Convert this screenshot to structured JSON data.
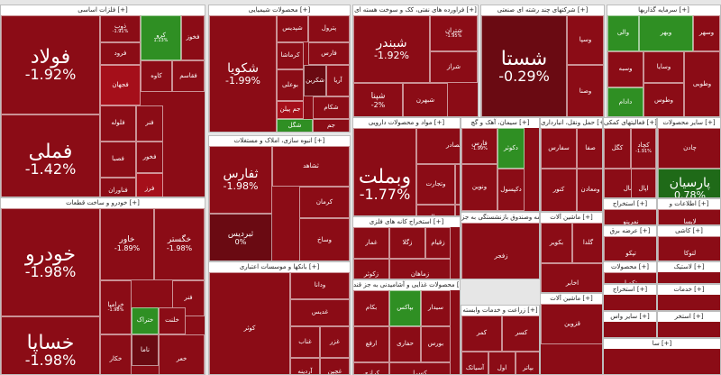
{
  "colors": {
    "dark_red": "#6a0a12",
    "red": "#8b0c16",
    "mid_red": "#a50f1a",
    "bright_red": "#c8141f",
    "dark_green": "#1f6a18",
    "green": "#2f8f23",
    "bright_green": "#3fae2d"
  },
  "sectors": [
    {
      "name": "sector-basic-metals",
      "title": "فلزات اساسی [+]"
    },
    {
      "name": "sector-chemicals",
      "title": "محصولات شیمیایی [+]"
    },
    {
      "name": "sector-petroleum",
      "title": "فراورده های نفتی، کک و سوخت هسته ای [+]"
    },
    {
      "name": "sector-multi-industry",
      "title": "شرکتهای چند رشته ای صنعتی [+]"
    },
    {
      "name": "sector-investment",
      "title": "سرمایه گذاریها [+]"
    },
    {
      "name": "sector-automotive",
      "title": "خودرو و ساخت قطعات [+]"
    },
    {
      "name": "sector-construction",
      "title": "انبوه سازی، املاک و مستغلات [+]"
    },
    {
      "name": "sector-pharma",
      "title": "مواد و محصولات دارویی [+]"
    },
    {
      "name": "sector-cement",
      "title": "سیمان، آهک و گچ [+]"
    },
    {
      "name": "sector-transport",
      "title": "حمل ونقل، انبارداری [+]"
    },
    {
      "name": "sector-credit",
      "title": "فعالیتهای کمکی [+]"
    },
    {
      "name": "sector-other-products",
      "title": "سایر محصولات [+]"
    },
    {
      "name": "sector-banks",
      "title": "بانکها و موسسات اعتباری [+]"
    },
    {
      "name": "sector-mining",
      "title": "استخراج کانه های فلزی [+]"
    },
    {
      "name": "sector-insurance",
      "title": "بیمه وصندوق بازنشستگی به جز [+]"
    },
    {
      "name": "sector-food",
      "title": "محصولات غذایی و آشامیدنی به جز قند [+]"
    },
    {
      "name": "sector-agriculture",
      "title": "زراعت و خدمات وابسته [+]"
    },
    {
      "name": "sector-machinery",
      "title": "ماشین آلات [+]"
    },
    {
      "name": "sector-coal",
      "title": "استخراج [+]"
    },
    {
      "name": "sector-it",
      "title": "اطلاعات و [+]"
    },
    {
      "name": "sector-retail",
      "title": "عرضه برق [+]"
    },
    {
      "name": "sector-tile",
      "title": "کاشی [+]"
    },
    {
      "name": "sector-paper",
      "title": "محصولات [+]"
    },
    {
      "name": "sector-textile",
      "title": "ماشین آلات [+]"
    },
    {
      "name": "sector-rubber",
      "title": "لاستیک [+]"
    },
    {
      "name": "sector-misc-extraction",
      "title": "استخراج [+]"
    },
    {
      "name": "sector-services",
      "title": "خدمات [+]"
    },
    {
      "name": "sector-other-mining",
      "title": "سایر واس [+]"
    },
    {
      "name": "sector-misc1",
      "title": "استخر [+]"
    },
    {
      "name": "sector-misc2",
      "title": "سا [+]"
    }
  ],
  "tiles": [
    {
      "name": "tile-foolad",
      "label": "فولاد",
      "pct": "-1.92%",
      "color": "#8b0c16",
      "size": "xl"
    },
    {
      "name": "tile-fameli",
      "label": "فملی",
      "pct": "-1.42%",
      "color": "#8b0c16",
      "size": "xl"
    },
    {
      "name": "tile-zob",
      "label": "ذوب",
      "pct": "-1.91%",
      "color": "#8b0c16",
      "size": "s"
    },
    {
      "name": "tile-kaveh-green",
      "label": "کرو",
      "pct": "1.13%",
      "color": "#2f8f23",
      "size": "s"
    },
    {
      "name": "tile-fakhoz",
      "label": "فخوز",
      "pct": "",
      "color": "#8b0c16",
      "size": "s"
    },
    {
      "name": "tile-foroud",
      "label": "فرود",
      "pct": "",
      "color": "#8b0c16",
      "size": "s"
    },
    {
      "name": "tile-kaveh",
      "label": "کاوه",
      "pct": "",
      "color": "#8b0c16",
      "size": "s"
    },
    {
      "name": "tile-fjehan",
      "label": "فجهان",
      "pct": "",
      "color": "#a50f1a",
      "size": "s"
    },
    {
      "name": "tile-folooleh",
      "label": "فلوله",
      "pct": "",
      "color": "#8b0c16",
      "size": "s"
    },
    {
      "name": "tile-fesaba",
      "label": "فصبا",
      "pct": "",
      "color": "#8b0c16",
      "size": "s"
    },
    {
      "name": "tile-fanavaran",
      "label": "فناوران",
      "pct": "",
      "color": "#8b0c16",
      "size": "s"
    },
    {
      "name": "tile-fenar",
      "label": "فنر",
      "pct": "",
      "color": "#8b0c16",
      "size": "s"
    },
    {
      "name": "tile-fakhoz2",
      "label": "فخور",
      "pct": "",
      "color": "#8b0c16",
      "size": "s"
    },
    {
      "name": "tile-fegostar",
      "label": "فقاسم",
      "pct": "",
      "color": "#8b0c16",
      "size": "s"
    },
    {
      "name": "tile-fogostar",
      "label": "فرز",
      "pct": "",
      "color": "#a50f1a",
      "size": "s"
    },
    {
      "name": "tile-shekoya",
      "label": "شکویا",
      "pct": "-1.99%",
      "color": "#8b0c16",
      "size": "l"
    },
    {
      "name": "tile-shepdis",
      "label": "شپدیس",
      "pct": "",
      "color": "#8b0c16",
      "size": "s"
    },
    {
      "name": "tile-karmasha",
      "label": "کرماشا",
      "pct": "",
      "color": "#8b0c16",
      "size": "s"
    },
    {
      "name": "tile-boali",
      "label": "بوعلی",
      "pct": "",
      "color": "#8b0c16",
      "size": "s"
    },
    {
      "name": "tile-petrol",
      "label": "پترول",
      "pct": "",
      "color": "#8b0c16",
      "size": "s"
    },
    {
      "name": "tile-fars",
      "label": "فارس",
      "pct": "",
      "color": "#8b0c16",
      "size": "s"
    },
    {
      "name": "tile-jam",
      "label": "جم پیلن",
      "pct": "",
      "color": "#a50f1a",
      "size": "s"
    },
    {
      "name": "tile-shekarn",
      "label": "شکربن",
      "pct": "",
      "color": "#6a0a12",
      "size": "s"
    },
    {
      "name": "tile-arya",
      "label": "آریا",
      "pct": "",
      "color": "#8b0c16",
      "size": "s"
    },
    {
      "name": "tile-shegol",
      "label": "شگل",
      "pct": "",
      "color": "#2f8f23",
      "size": "s"
    },
    {
      "name": "tile-shekham",
      "label": "شکام",
      "pct": "",
      "color": "#8b0c16",
      "size": "s"
    },
    {
      "name": "tile-jam2",
      "label": "جم",
      "pct": "",
      "color": "#8b0c16",
      "size": "s"
    },
    {
      "name": "tile-shebandar",
      "label": "شبندر",
      "pct": "-1.92%",
      "color": "#8b0c16",
      "size": "l"
    },
    {
      "name": "tile-shepna",
      "label": "شپنا",
      "pct": "-2%",
      "color": "#8b0c16",
      "size": "m"
    },
    {
      "name": "tile-shetran",
      "label": "شتران",
      "pct": "-1.95%",
      "color": "#8b0c16",
      "size": "s"
    },
    {
      "name": "tile-shebehran",
      "label": "شبهرن",
      "pct": "",
      "color": "#8b0c16",
      "size": "s"
    },
    {
      "name": "tile-shekhaz",
      "label": "شراز",
      "pct": "",
      "color": "#8b0c16",
      "size": "s"
    },
    {
      "name": "tile-shasta",
      "label": "شستا",
      "pct": "-0.29%",
      "color": "#6a0a12",
      "size": "xl"
    },
    {
      "name": "tile-vasapa",
      "label": "وسپا",
      "pct": "",
      "color": "#8b0c16",
      "size": "s"
    },
    {
      "name": "tile-vakhat",
      "label": "وصنا",
      "pct": "",
      "color": "#8b0c16",
      "size": "s"
    },
    {
      "name": "tile-vali",
      "label": "والی",
      "pct": "",
      "color": "#2f8f23",
      "size": "s"
    },
    {
      "name": "tile-vaber",
      "label": "وبهر",
      "pct": "",
      "color": "#2f8f23",
      "size": "s"
    },
    {
      "name": "tile-vasahr",
      "label": "وسهر",
      "pct": "",
      "color": "#8b0c16",
      "size": "s"
    },
    {
      "name": "tile-vasbeh",
      "label": "وسبه",
      "pct": "",
      "color": "#8b0c16",
      "size": "s"
    },
    {
      "name": "tile-vasaya",
      "label": "وسایا",
      "pct": "",
      "color": "#8b0c16",
      "size": "s"
    },
    {
      "name": "tile-daram",
      "label": "دادام",
      "pct": "",
      "color": "#2f8f23",
      "size": "s"
    },
    {
      "name": "tile-vatoosa",
      "label": "وطوس",
      "pct": "",
      "color": "#8b0c16",
      "size": "s"
    },
    {
      "name": "tile-vatoosi",
      "label": "وطوبی",
      "pct": "",
      "color": "#8b0c16",
      "size": "s"
    },
    {
      "name": "tile-khodro",
      "label": "خودرو",
      "pct": "-1.98%",
      "color": "#8b0c16",
      "size": "xl"
    },
    {
      "name": "tile-khasapa",
      "label": "خساپا",
      "pct": "-1.98%",
      "color": "#8b0c16",
      "size": "xl"
    },
    {
      "name": "tile-khavar",
      "label": "خاور",
      "pct": "-1.89%",
      "color": "#8b0c16",
      "size": "m"
    },
    {
      "name": "tile-khegostar",
      "label": "خگستر",
      "pct": "-1.98%",
      "color": "#8b0c16",
      "size": "m"
    },
    {
      "name": "tile-kharamia",
      "label": "خرامیا",
      "pct": "-1.98%",
      "color": "#8b0c16",
      "size": "s"
    },
    {
      "name": "tile-fenar2",
      "label": "فنر",
      "pct": "",
      "color": "#8b0c16",
      "size": "s"
    },
    {
      "name": "tile-khatrak",
      "label": "ختراک",
      "pct": "",
      "color": "#2f8f23",
      "size": "s"
    },
    {
      "name": "tile-khenta",
      "label": "خلنت",
      "pct": "",
      "color": "#8b0c16",
      "size": "s"
    },
    {
      "name": "tile-khenama",
      "label": "ناما",
      "pct": "",
      "color": "#6a0a12",
      "size": "s"
    },
    {
      "name": "tile-khakar",
      "label": "خکار",
      "pct": "",
      "color": "#8b0c16",
      "size": "s"
    },
    {
      "name": "tile-khaar",
      "label": "خعر",
      "pct": "",
      "color": "#8b0c16",
      "size": "s"
    },
    {
      "name": "tile-thfars",
      "label": "ثفارس",
      "pct": "-1.98%",
      "color": "#8b0c16",
      "size": "l"
    },
    {
      "name": "tile-thebardis",
      "label": "ثبردیس",
      "pct": "0%",
      "color": "#6a0a12",
      "size": "m"
    },
    {
      "name": "tile-thashad",
      "label": "ثشاهد",
      "pct": "",
      "color": "#8b0c16",
      "size": "s"
    },
    {
      "name": "tile-kerman",
      "label": "کرمان",
      "pct": "",
      "color": "#8b0c16",
      "size": "s"
    },
    {
      "name": "tile-vosakh",
      "label": "وساخ",
      "pct": "",
      "color": "#8b0c16",
      "size": "s"
    },
    {
      "name": "tile-vebmelat",
      "label": "وبملت",
      "pct": "-1.77%",
      "color": "#8b0c16",
      "size": "xl"
    },
    {
      "name": "tile-vebsader",
      "label": "وبصادر",
      "pct": "",
      "color": "#8b0c16",
      "size": "s"
    },
    {
      "name": "tile-vetejarat",
      "label": "وتجارت",
      "pct": "",
      "color": "#8b0c16",
      "size": "s"
    },
    {
      "name": "tile-vepasar",
      "label": "وپاسار",
      "pct": "",
      "color": "#8b0c16",
      "size": "s"
    },
    {
      "name": "tile-vemal",
      "label": "وسال",
      "pct": "",
      "color": "#8b0c16",
      "size": "s"
    },
    {
      "name": "tile-vebank",
      "label": "وبانک",
      "pct": "",
      "color": "#8b0c16",
      "size": "s"
    },
    {
      "name": "tile-vepost",
      "label": "وپست",
      "pct": "",
      "color": "#8b0c16",
      "size": "s"
    },
    {
      "name": "tile-vefars",
      "label": "فارس",
      "pct": "-1.99%",
      "color": "#8b0c16",
      "size": "s"
    },
    {
      "name": "tile-venovin",
      "label": "ونوین",
      "pct": "",
      "color": "#8b0c16",
      "size": "s"
    },
    {
      "name": "tile-dekosar",
      "label": "دکوثر",
      "pct": "",
      "color": "#2f8f23",
      "size": "s"
    },
    {
      "name": "tile-dekipisol",
      "label": "دکپسول",
      "pct": "",
      "color": "#8b0c16",
      "size": "s"
    },
    {
      "name": "tile-sefars",
      "label": "سفارس",
      "pct": "",
      "color": "#8b0c16",
      "size": "s"
    },
    {
      "name": "tile-sesafa",
      "label": "صفا",
      "pct": "",
      "color": "#8b0c16",
      "size": "s"
    },
    {
      "name": "tile-kenor",
      "label": "کنور",
      "pct": "",
      "color": "#8b0c16",
      "size": "s"
    },
    {
      "name": "tile-kemadan",
      "label": "ومعادن",
      "pct": "",
      "color": "#8b0c16",
      "size": "s"
    },
    {
      "name": "tile-kegol",
      "label": "کگل",
      "pct": "",
      "color": "#8b0c16",
      "size": "s"
    },
    {
      "name": "tile-kechad",
      "label": "کچاد",
      "pct": "-1.91%",
      "color": "#8b0c16",
      "size": "s"
    },
    {
      "name": "tile-kamal",
      "label": "کمال",
      "pct": "",
      "color": "#8b0c16",
      "size": "s"
    },
    {
      "name": "tile-ekal",
      "label": "اپال",
      "pct": "",
      "color": "#8b0c16",
      "size": "s"
    },
    {
      "name": "tile-keplek",
      "label": "چادن",
      "pct": "",
      "color": "#8b0c16",
      "size": "s"
    },
    {
      "name": "tile-parsian",
      "label": "پارسیان",
      "pct": "0.78%",
      "color": "#1f6a18",
      "size": "l"
    },
    {
      "name": "tile-kobar",
      "label": "کوثر",
      "pct": "",
      "color": "#8b0c16",
      "size": "s"
    },
    {
      "name": "tile-vekhar",
      "label": "ودانا",
      "pct": "",
      "color": "#8b0c16",
      "size": "s"
    },
    {
      "name": "tile-ghadir",
      "label": "غدیس",
      "pct": "",
      "color": "#8b0c16",
      "size": "s"
    },
    {
      "name": "tile-ghenab",
      "label": "غناب",
      "pct": "",
      "color": "#8b0c16",
      "size": "s"
    },
    {
      "name": "tile-ghazar",
      "label": "غزر",
      "pct": "",
      "color": "#8b0c16",
      "size": "s"
    },
    {
      "name": "tile-ghadrin",
      "label": "آردینه",
      "pct": "",
      "color": "#8b0c16",
      "size": "s"
    },
    {
      "name": "tile-gheshan",
      "label": "غچین",
      "pct": "",
      "color": "#8b0c16",
      "size": "s"
    },
    {
      "name": "tile-ghesht",
      "label": "غشهد",
      "pct": "",
      "color": "#8b0c16",
      "size": "s"
    },
    {
      "name": "tile-ghepin",
      "label": "غپینو",
      "pct": "",
      "color": "#2f8f23",
      "size": "s"
    },
    {
      "name": "tile-ghamar",
      "label": "غمار",
      "pct": "",
      "color": "#8b0c16",
      "size": "s"
    },
    {
      "name": "tile-zeghol",
      "label": "زگلا",
      "pct": "",
      "color": "#8b0c16",
      "size": "s"
    },
    {
      "name": "tile-zagros",
      "label": "زقیام",
      "pct": "",
      "color": "#8b0c16",
      "size": "s"
    },
    {
      "name": "tile-zabi",
      "label": "زکوثر",
      "pct": "",
      "color": "#8b0c16",
      "size": "s"
    },
    {
      "name": "tile-zemahan",
      "label": "زماهان",
      "pct": "",
      "color": "#8b0c16",
      "size": "s"
    },
    {
      "name": "tile-zefajr",
      "label": "زفجر",
      "pct": "",
      "color": "#8b0c16",
      "size": "s"
    },
    {
      "name": "tile-zebarz",
      "label": "زبرز",
      "pct": "",
      "color": "#8b0c16",
      "size": "s"
    },
    {
      "name": "tile-bekam",
      "label": "بکام",
      "pct": "",
      "color": "#8b0c16",
      "size": "s"
    },
    {
      "name": "tile-bekhar",
      "label": "بپاکس",
      "pct": "",
      "color": "#2f8f23",
      "size": "s"
    },
    {
      "name": "tile-sidar",
      "label": "سیدار",
      "pct": "",
      "color": "#8b0c16",
      "size": "s"
    },
    {
      "name": "tile-arfa",
      "label": "ارفع",
      "pct": "",
      "color": "#8b0c16",
      "size": "s"
    },
    {
      "name": "tile-hafar",
      "label": "حفاری",
      "pct": "",
      "color": "#8b0c16",
      "size": "s"
    },
    {
      "name": "tile-bores",
      "label": "بورس",
      "pct": "",
      "color": "#8b0c16",
      "size": "s"
    },
    {
      "name": "tile-karazi",
      "label": "کرازی",
      "pct": "",
      "color": "#8b0c16",
      "size": "s"
    },
    {
      "name": "tile-kesra",
      "label": "کسرا",
      "pct": "",
      "color": "#8b0c16",
      "size": "s"
    },
    {
      "name": "tile-kemar",
      "label": "کمر",
      "pct": "",
      "color": "#8b0c16",
      "size": "s"
    },
    {
      "name": "tile-kaser",
      "label": "کسر",
      "pct": "",
      "color": "#8b0c16",
      "size": "s"
    },
    {
      "name": "tile-asyatak",
      "label": "آسیاتک",
      "pct": "",
      "color": "#8b0c16",
      "size": "s"
    },
    {
      "name": "tile-aval",
      "label": "اول",
      "pct": "",
      "color": "#8b0c16",
      "size": "s"
    },
    {
      "name": "tile-batir",
      "label": "بپاتر",
      "pct": "",
      "color": "#8b0c16",
      "size": "s"
    },
    {
      "name": "tile-bekovir",
      "label": "بکویر",
      "pct": "",
      "color": "#8b0c16",
      "size": "s"
    },
    {
      "name": "tile-getela",
      "label": "گلدا",
      "pct": "",
      "color": "#8b0c16",
      "size": "s"
    },
    {
      "name": "tile-takhar",
      "label": "اخابر",
      "pct": "",
      "color": "#8b0c16",
      "size": "s"
    },
    {
      "name": "tile-nirova",
      "label": "نمرینو",
      "pct": "",
      "color": "#8b0c16",
      "size": "s"
    },
    {
      "name": "tile-loabi",
      "label": "لابسا",
      "pct": "",
      "color": "#8b0c16",
      "size": "s"
    },
    {
      "name": "tile-tepco",
      "label": "تپکو",
      "pct": "",
      "color": "#8b0c16",
      "size": "s"
    },
    {
      "name": "tile-taghir",
      "label": "لتوکا",
      "pct": "",
      "color": "#8b0c16",
      "size": "s"
    },
    {
      "name": "tile-takmi",
      "label": "تکمبا",
      "pct": "",
      "color": "#8b0c16",
      "size": "s"
    },
    {
      "name": "tile-qazvin",
      "label": "قزوین",
      "pct": "",
      "color": "#8b0c16",
      "size": "s"
    }
  ]
}
